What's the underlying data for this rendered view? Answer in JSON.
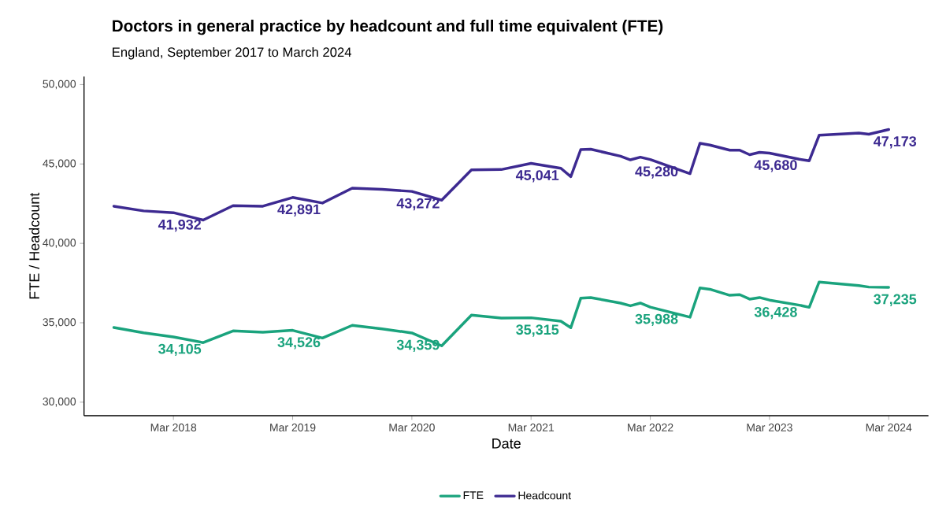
{
  "chart_data": {
    "type": "line",
    "title": "Doctors in general practice by headcount and full time equivalent (FTE)",
    "subtitle": "England, September 2017 to March 2024",
    "xlabel": "Date",
    "ylabel": "FTE / Headcount",
    "xlim": [
      "2017-06",
      "2024-07"
    ],
    "ylim": [
      29150,
      50500
    ],
    "xticks": [
      {
        "value": "2018-03",
        "label": "Mar 2018"
      },
      {
        "value": "2019-03",
        "label": "Mar 2019"
      },
      {
        "value": "2020-03",
        "label": "Mar 2020"
      },
      {
        "value": "2021-03",
        "label": "Mar 2021"
      },
      {
        "value": "2022-03",
        "label": "Mar 2022"
      },
      {
        "value": "2023-03",
        "label": "Mar 2023"
      },
      {
        "value": "2024-03",
        "label": "Mar 2024"
      }
    ],
    "yticks": [
      {
        "value": 30000,
        "label": "30,000"
      },
      {
        "value": 35000,
        "label": "35,000"
      },
      {
        "value": 40000,
        "label": "40,000"
      },
      {
        "value": 45000,
        "label": "45,000"
      },
      {
        "value": 50000,
        "label": "50,000"
      }
    ],
    "x": [
      "2017-09",
      "2017-12",
      "2018-03",
      "2018-06",
      "2018-09",
      "2018-12",
      "2019-03",
      "2019-06",
      "2019-09",
      "2019-12",
      "2020-03",
      "2020-06",
      "2020-09",
      "2020-12",
      "2021-03",
      "2021-06",
      "2021-07",
      "2021-08",
      "2021-09",
      "2021-12",
      "2022-01",
      "2022-02",
      "2022-03",
      "2022-07",
      "2022-08",
      "2022-09",
      "2022-11",
      "2022-12",
      "2023-01",
      "2023-02",
      "2023-03",
      "2023-06",
      "2023-07",
      "2023-08",
      "2023-12",
      "2024-01",
      "2024-03"
    ],
    "series": [
      {
        "name": "FTE",
        "color": "#1aa37d",
        "values": [
          34700,
          34370,
          34105,
          33750,
          34490,
          34400,
          34526,
          34040,
          34840,
          34620,
          34359,
          33550,
          35485,
          35300,
          35315,
          35100,
          34690,
          36545,
          36590,
          36240,
          36070,
          36240,
          35988,
          35350,
          37190,
          37110,
          36730,
          36770,
          36490,
          36590,
          36428,
          36110,
          35975,
          37570,
          37340,
          37250,
          37235
        ],
        "value_labels": [
          null,
          null,
          "34,105",
          null,
          null,
          null,
          "34,526",
          null,
          null,
          null,
          "34,359",
          null,
          null,
          null,
          "35,315",
          null,
          null,
          null,
          null,
          null,
          null,
          null,
          "35,988",
          null,
          null,
          null,
          null,
          null,
          null,
          null,
          "36,428",
          null,
          null,
          null,
          null,
          null,
          "37,235"
        ]
      },
      {
        "name": "Headcount",
        "color": "#3d2a91",
        "values": [
          42340,
          42045,
          41932,
          41470,
          42375,
          42340,
          42891,
          42540,
          43480,
          43400,
          43272,
          42720,
          44630,
          44650,
          45041,
          44730,
          44200,
          45905,
          45930,
          45490,
          45260,
          45430,
          45280,
          44390,
          46300,
          46190,
          45870,
          45870,
          45585,
          45730,
          45680,
          45300,
          45200,
          46810,
          46945,
          46870,
          47173
        ],
        "value_labels": [
          null,
          null,
          "41,932",
          null,
          null,
          null,
          "42,891",
          null,
          null,
          null,
          "43,272",
          null,
          null,
          null,
          "45,041",
          null,
          null,
          null,
          null,
          null,
          null,
          null,
          "45,280",
          null,
          null,
          null,
          null,
          null,
          null,
          null,
          "45,680",
          null,
          null,
          null,
          null,
          null,
          "47,173"
        ]
      }
    ],
    "line_style": "solid",
    "grid": false,
    "legend": "bottom"
  }
}
